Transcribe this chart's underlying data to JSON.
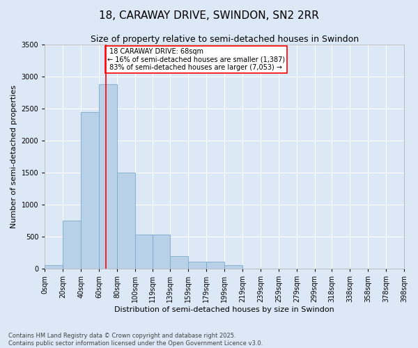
{
  "title": "18, CARAWAY DRIVE, SWINDON, SN2 2RR",
  "subtitle": "Size of property relative to semi-detached houses in Swindon",
  "xlabel": "Distribution of semi-detached houses by size in Swindon",
  "ylabel": "Number of semi-detached properties",
  "property_size": 68,
  "property_label": "18 CARAWAY DRIVE: 68sqm",
  "pct_smaller": 16,
  "pct_larger": 83,
  "count_smaller": 1387,
  "count_larger": 7053,
  "bar_color": "#b8d0e8",
  "bar_edge_color": "#7aaac8",
  "bar_values": [
    50,
    750,
    2450,
    2880,
    1500,
    530,
    530,
    200,
    110,
    110,
    50,
    0,
    0,
    0,
    0,
    0,
    0,
    0,
    0
  ],
  "bin_labels": [
    "0sqm",
    "20sqm",
    "40sqm",
    "60sqm",
    "80sqm",
    "100sqm",
    "119sqm",
    "139sqm",
    "159sqm",
    "179sqm",
    "199sqm",
    "219sqm",
    "239sqm",
    "259sqm",
    "279sqm",
    "299sqm",
    "318sqm",
    "338sqm",
    "358sqm",
    "378sqm",
    "398sqm"
  ],
  "bin_edges": [
    0,
    20,
    40,
    60,
    80,
    100,
    119,
    139,
    159,
    179,
    199,
    219,
    239,
    259,
    279,
    299,
    318,
    338,
    358,
    378,
    398
  ],
  "ylim": [
    0,
    3500
  ],
  "yticks": [
    0,
    500,
    1000,
    1500,
    2000,
    2500,
    3000,
    3500
  ],
  "vline_x": 68,
  "bg_color": "#dce8f5",
  "plot_bg": "#dce8f5",
  "title_fontsize": 11,
  "subtitle_fontsize": 9,
  "axis_label_fontsize": 8,
  "tick_fontsize": 7,
  "ann_fontsize": 7,
  "footer_text": "Contains HM Land Registry data © Crown copyright and database right 2025.\nContains public sector information licensed under the Open Government Licence v3.0."
}
